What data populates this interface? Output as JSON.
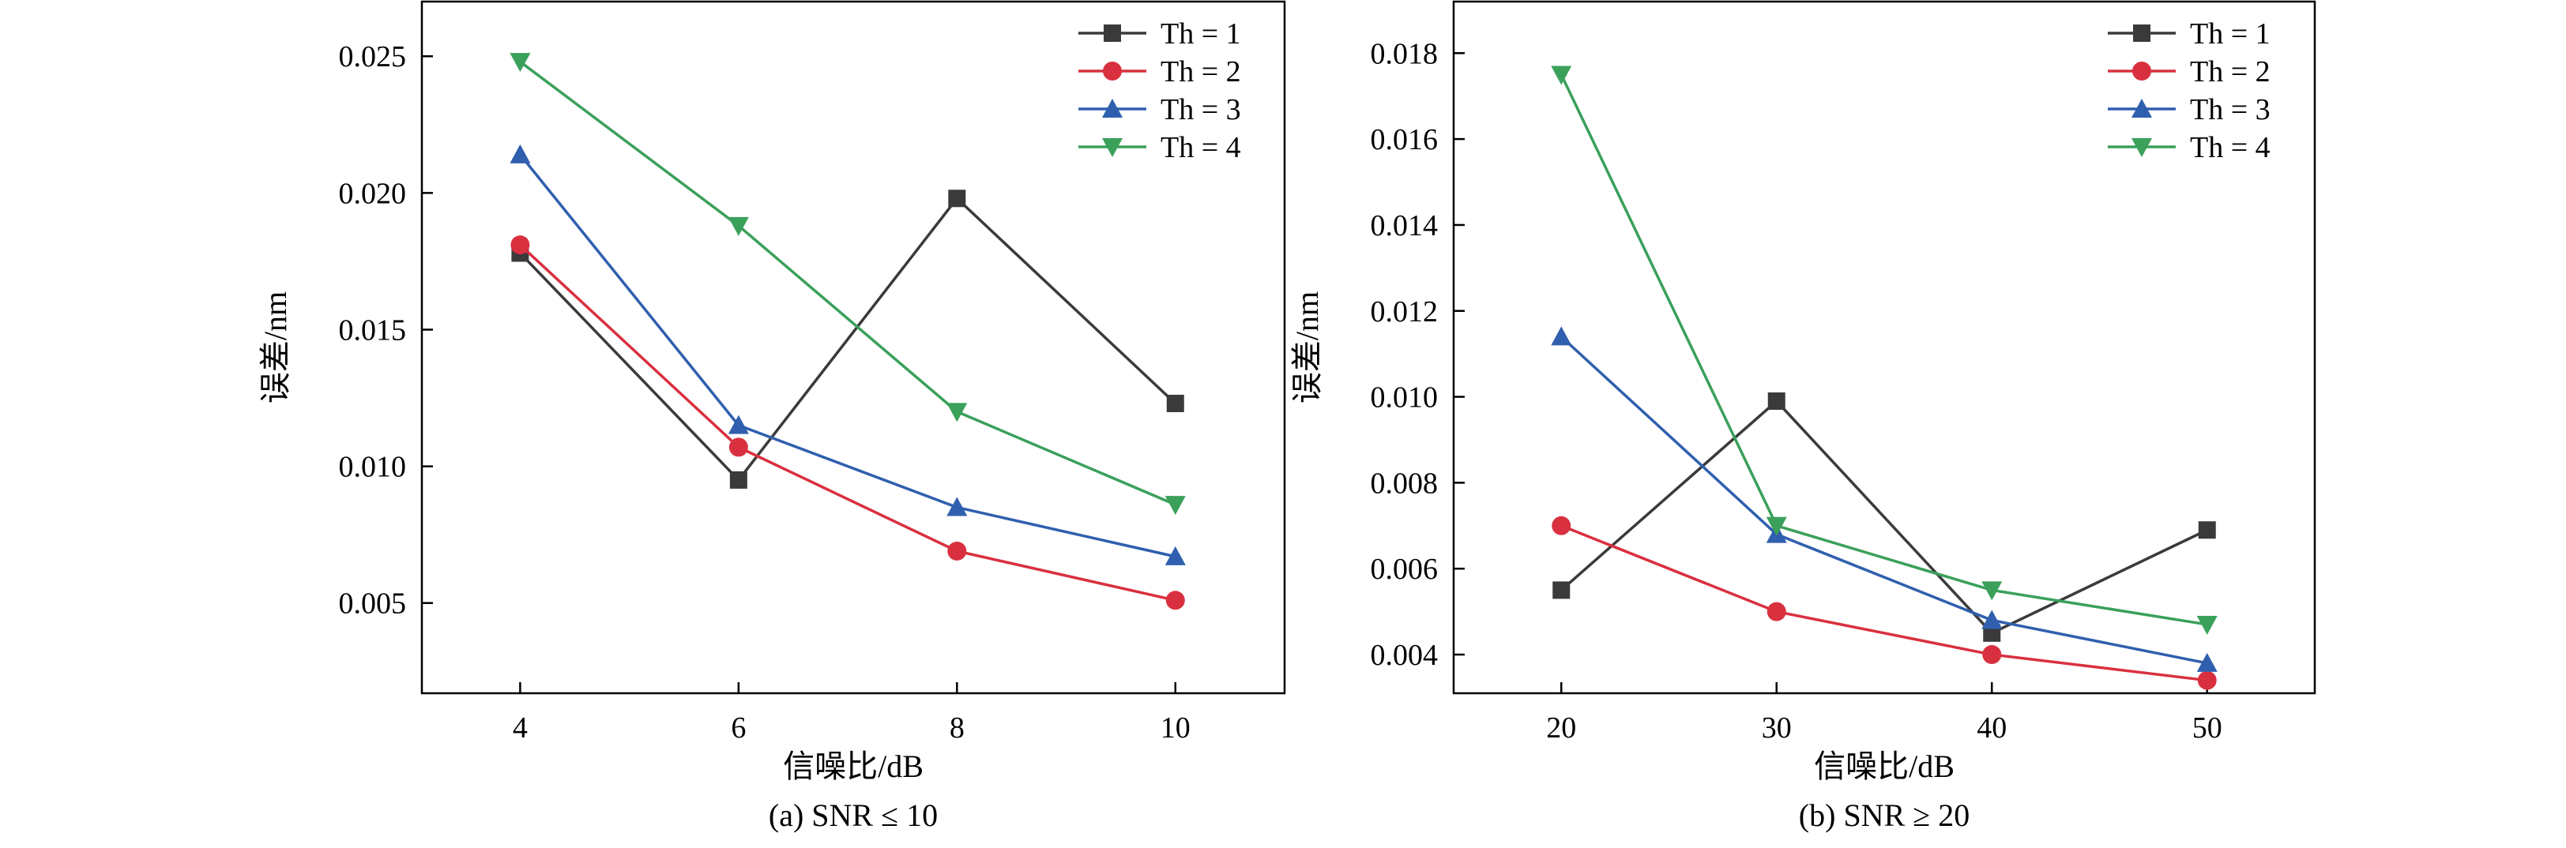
{
  "colors": {
    "Th = 1": "#3a3a3a",
    "Th = 2": "#d9303f",
    "Th = 3": "#2f5fae",
    "Th = 4": "#3aa05a"
  },
  "markers": {
    "Th = 1": "square",
    "Th = 2": "circle",
    "Th = 3": "triangle-up",
    "Th = 4": "triangle-down"
  },
  "chart_data": [
    {
      "type": "line",
      "caption": "(a) SNR ≤ 10",
      "xlabel": "信噪比/dB",
      "ylabel": "误差/nm",
      "x": [
        4,
        6,
        8,
        10
      ],
      "xticks": [
        "4",
        "6",
        "8",
        "10"
      ],
      "xlim": [
        3.1,
        11.0
      ],
      "ylim": [
        0.0017,
        0.027
      ],
      "yticks": [
        "0.005",
        "0.010",
        "0.015",
        "0.020",
        "0.025"
      ],
      "legend": "top-right",
      "grid": false,
      "series": [
        {
          "name": "Th = 1",
          "values": [
            0.0178,
            0.0095,
            0.0198,
            0.0123
          ]
        },
        {
          "name": "Th = 2",
          "values": [
            0.0181,
            0.0107,
            0.0069,
            0.0051
          ]
        },
        {
          "name": "Th = 3",
          "values": [
            0.0214,
            0.0115,
            0.0085,
            0.0067
          ]
        },
        {
          "name": "Th = 4",
          "values": [
            0.0248,
            0.0188,
            0.012,
            0.0086
          ]
        }
      ]
    },
    {
      "type": "line",
      "caption": "(b) SNR ≥ 20",
      "xlabel": "信噪比/dB",
      "ylabel": "误差/nm",
      "x": [
        20,
        30,
        40,
        50
      ],
      "xticks": [
        "20",
        "30",
        "40",
        "50"
      ],
      "xlim": [
        15.0,
        55.0
      ],
      "ylim": [
        0.0031,
        0.0192
      ],
      "yticks": [
        "0.004",
        "0.006",
        "0.008",
        "0.010",
        "0.012",
        "0.014",
        "0.016",
        "0.018"
      ],
      "legend": "top-right",
      "grid": false,
      "series": [
        {
          "name": "Th = 1",
          "values": [
            0.0055,
            0.0099,
            0.0045,
            0.0069
          ]
        },
        {
          "name": "Th = 2",
          "values": [
            0.007,
            0.005,
            0.004,
            0.0034
          ]
        },
        {
          "name": "Th = 3",
          "values": [
            0.0114,
            0.0068,
            0.0048,
            0.0038
          ]
        },
        {
          "name": "Th = 4",
          "values": [
            0.0175,
            0.007,
            0.0055,
            0.0047
          ]
        }
      ]
    }
  ]
}
